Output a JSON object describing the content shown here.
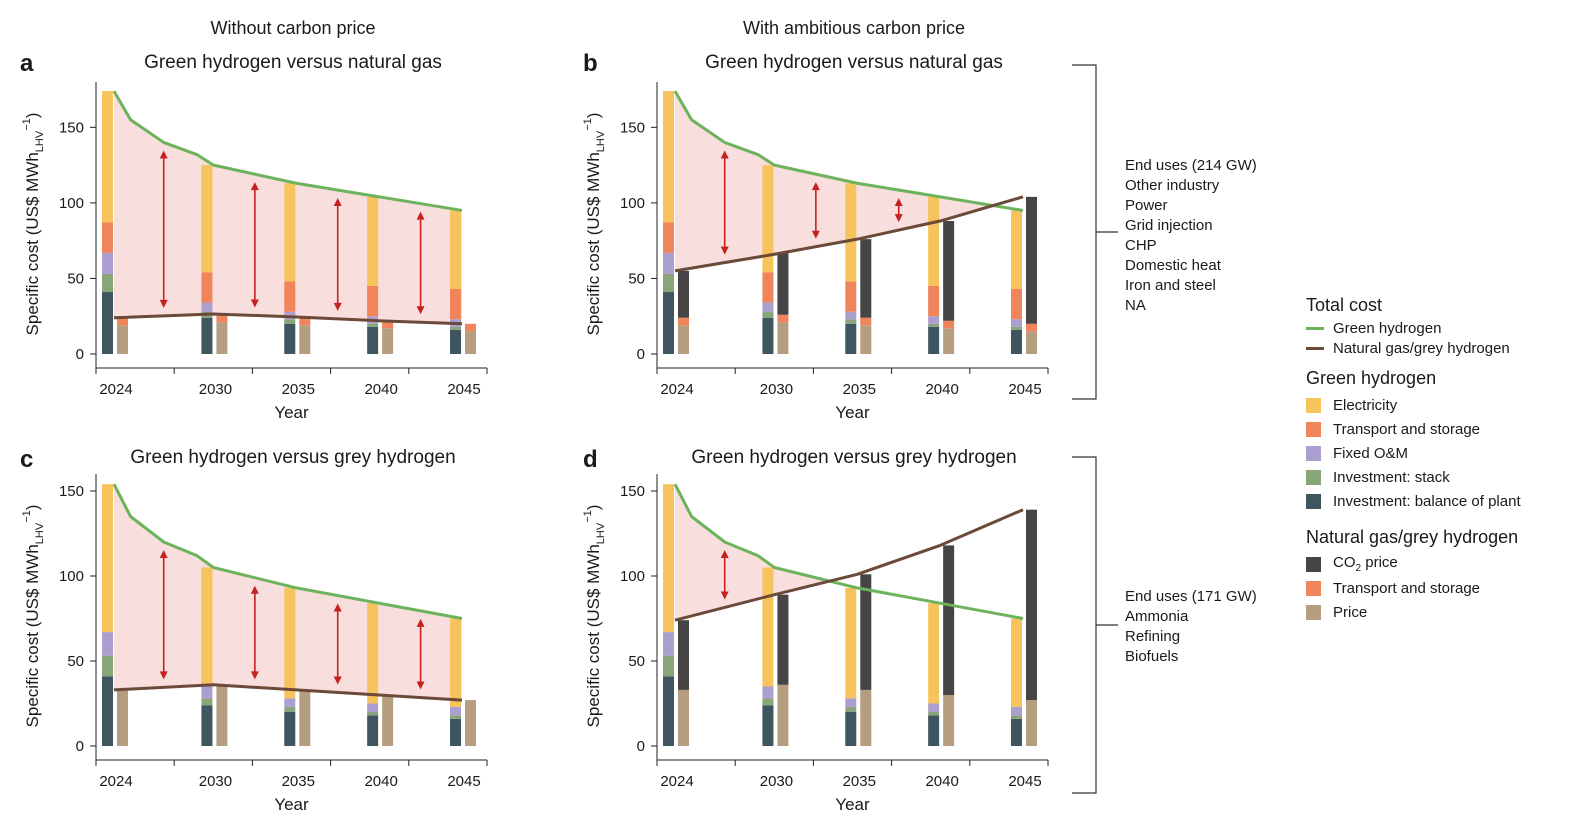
{
  "column_titles": {
    "left": "Without carbon price",
    "right": "With ambitious carbon price"
  },
  "end_use_groups": [
    {
      "items": [
        "End uses (214 GW)",
        "Other industry",
        "Power",
        "Grid injection",
        "CHP",
        "Domestic heat",
        "Iron and steel",
        "NA"
      ]
    },
    {
      "items": [
        "End uses (171 GW)",
        "Ammonia",
        "Refining",
        "Biofuels"
      ]
    }
  ],
  "legend": {
    "total_cost": {
      "title": "Total cost",
      "items": [
        {
          "label": "Green hydrogen",
          "color": "#6db35c"
        },
        {
          "label": "Natural gas/grey hydrogen",
          "color": "#6b4a39"
        }
      ]
    },
    "green": {
      "title": "Green hydrogen",
      "items": [
        {
          "label": "Electricity",
          "color": "#f6c35d"
        },
        {
          "label": "Transport and storage",
          "color": "#f0845a"
        },
        {
          "label": "Fixed O&M",
          "color": "#ab9fcf"
        },
        {
          "label": "Investment: stack",
          "color": "#8aa57a"
        },
        {
          "label": "Investment: balance of plant",
          "color": "#3f5560"
        }
      ]
    },
    "grey": {
      "title_prefix": "Natural gas/grey hydrogen",
      "items": [
        {
          "label_main": "CO",
          "label_sub": "2",
          "label_rest": " price",
          "color": "#464444"
        },
        {
          "label_main": "Transport and storage",
          "label_sub": "",
          "label_rest": "",
          "color": "#f0845a"
        },
        {
          "label_main": "Price",
          "label_sub": "",
          "label_rest": "",
          "color": "#b59e7f"
        }
      ]
    }
  },
  "chart_data": [
    {
      "panel": "a",
      "title": "Green hydrogen versus natural gas",
      "type": "bar",
      "xlabel": "Year",
      "ylabel": "Specific cost (US$ MWh",
      "ylabel_sub": "LHV",
      "ylabel_sup": "−1",
      "ylabel_end": ")",
      "ylim": [
        0,
        180
      ],
      "yticks": [
        0,
        50,
        100,
        150
      ],
      "years": [
        "2024",
        "2030",
        "2035",
        "2040",
        "2045"
      ],
      "green_stack": [
        {
          "year": "2024",
          "investment_bop": 41,
          "investment_stack": 12,
          "fixed_om": 14,
          "transport": 20,
          "electricity": 87
        },
        {
          "year": "2030",
          "investment_bop": 24,
          "investment_stack": 4,
          "fixed_om": 6,
          "transport": 20,
          "electricity": 71
        },
        {
          "year": "2035",
          "investment_bop": 20,
          "investment_stack": 3,
          "fixed_om": 5,
          "transport": 20,
          "electricity": 65
        },
        {
          "year": "2040",
          "investment_bop": 18,
          "investment_stack": 2,
          "fixed_om": 5,
          "transport": 20,
          "electricity": 59
        },
        {
          "year": "2045",
          "investment_bop": 16,
          "investment_stack": 2,
          "fixed_om": 5,
          "transport": 20,
          "electricity": 52
        }
      ],
      "grey_stack": [
        {
          "year": "2024",
          "price": 19,
          "transport": 5,
          "co2": 0
        },
        {
          "year": "2030",
          "price": 21,
          "transport": 5,
          "co2": 0
        },
        {
          "year": "2035",
          "price": 19,
          "transport": 5,
          "co2": 0
        },
        {
          "year": "2040",
          "price": 17,
          "transport": 5,
          "co2": 0
        },
        {
          "year": "2045",
          "price": 15,
          "transport": 5,
          "co2": 0
        }
      ],
      "green_total_line": {
        "x": [
          2024,
          2025,
          2027,
          2029,
          2030,
          2035,
          2040,
          2045
        ],
        "y": [
          174,
          155,
          140,
          132,
          125,
          113,
          104,
          95
        ]
      },
      "grey_total_line": {
        "x": [
          2024,
          2030,
          2035,
          2040,
          2045
        ],
        "y": [
          24,
          26.5,
          24.5,
          22,
          20
        ]
      },
      "gap_arrows": [
        2027,
        2032.5,
        2037.5,
        2042.5
      ]
    },
    {
      "panel": "b",
      "title": "Green hydrogen versus natural gas",
      "type": "bar",
      "xlabel": "Year",
      "ylabel": "Specific cost (US$ MWh",
      "ylabel_sub": "LHV",
      "ylabel_sup": "−1",
      "ylabel_end": ")",
      "ylim": [
        0,
        180
      ],
      "yticks": [
        0,
        50,
        100,
        150
      ],
      "years": [
        "2024",
        "2030",
        "2035",
        "2040",
        "2045"
      ],
      "green_stack": [
        {
          "year": "2024",
          "investment_bop": 41,
          "investment_stack": 12,
          "fixed_om": 14,
          "transport": 20,
          "electricity": 87
        },
        {
          "year": "2030",
          "investment_bop": 24,
          "investment_stack": 4,
          "fixed_om": 6,
          "transport": 20,
          "electricity": 71
        },
        {
          "year": "2035",
          "investment_bop": 20,
          "investment_stack": 3,
          "fixed_om": 5,
          "transport": 20,
          "electricity": 65
        },
        {
          "year": "2040",
          "investment_bop": 18,
          "investment_stack": 2,
          "fixed_om": 5,
          "transport": 20,
          "electricity": 59
        },
        {
          "year": "2045",
          "investment_bop": 16,
          "investment_stack": 2,
          "fixed_om": 5,
          "transport": 20,
          "electricity": 52
        }
      ],
      "grey_stack": [
        {
          "year": "2024",
          "price": 19,
          "transport": 5,
          "co2": 31
        },
        {
          "year": "2030",
          "price": 21,
          "transport": 5,
          "co2": 41
        },
        {
          "year": "2035",
          "price": 19,
          "transport": 5,
          "co2": 52
        },
        {
          "year": "2040",
          "price": 17,
          "transport": 5,
          "co2": 66
        },
        {
          "year": "2045",
          "price": 15,
          "transport": 5,
          "co2": 84
        }
      ],
      "green_total_line": {
        "x": [
          2024,
          2025,
          2027,
          2029,
          2030,
          2035,
          2040,
          2045
        ],
        "y": [
          174,
          155,
          140,
          132,
          125,
          113,
          104,
          95
        ]
      },
      "grey_total_line": {
        "x": [
          2024,
          2030,
          2035,
          2040,
          2045
        ],
        "y": [
          55,
          66,
          76,
          88,
          104
        ]
      },
      "gap_arrows": [
        2027,
        2032.5,
        2037.5
      ]
    },
    {
      "panel": "c",
      "title": "Green hydrogen versus grey hydrogen",
      "type": "bar",
      "xlabel": "Year",
      "ylabel": "Specific cost (US$ MWh",
      "ylabel_sub": "LHV",
      "ylabel_sup": "−1",
      "ylabel_end": ")",
      "ylim": [
        0,
        160
      ],
      "yticks": [
        0,
        50,
        100,
        150
      ],
      "years": [
        "2024",
        "2030",
        "2035",
        "2040",
        "2045"
      ],
      "green_stack": [
        {
          "year": "2024",
          "investment_bop": 41,
          "investment_stack": 12,
          "fixed_om": 14,
          "transport": 0,
          "electricity": 87
        },
        {
          "year": "2030",
          "investment_bop": 24,
          "investment_stack": 4,
          "fixed_om": 7,
          "transport": 0,
          "electricity": 70
        },
        {
          "year": "2035",
          "investment_bop": 20,
          "investment_stack": 3,
          "fixed_om": 5,
          "transport": 0,
          "electricity": 65
        },
        {
          "year": "2040",
          "investment_bop": 18,
          "investment_stack": 2,
          "fixed_om": 5,
          "transport": 0,
          "electricity": 59
        },
        {
          "year": "2045",
          "investment_bop": 16,
          "investment_stack": 2,
          "fixed_om": 5,
          "transport": 0,
          "electricity": 52
        }
      ],
      "grey_stack": [
        {
          "year": "2024",
          "price": 33,
          "transport": 0,
          "co2": 0
        },
        {
          "year": "2030",
          "price": 36,
          "transport": 0,
          "co2": 0
        },
        {
          "year": "2035",
          "price": 33,
          "transport": 0,
          "co2": 0
        },
        {
          "year": "2040",
          "price": 30,
          "transport": 0,
          "co2": 0
        },
        {
          "year": "2045",
          "price": 27,
          "transport": 0,
          "co2": 0
        }
      ],
      "green_total_line": {
        "x": [
          2024,
          2025,
          2027,
          2029,
          2030,
          2035,
          2040,
          2045
        ],
        "y": [
          154,
          135,
          120,
          112,
          105,
          93,
          84,
          75
        ]
      },
      "grey_total_line": {
        "x": [
          2024,
          2030,
          2035,
          2040,
          2045
        ],
        "y": [
          33,
          36,
          33,
          30,
          27
        ]
      },
      "gap_arrows": [
        2027,
        2032.5,
        2037.5,
        2042.5
      ]
    },
    {
      "panel": "d",
      "title": "Green hydrogen versus grey hydrogen",
      "type": "bar",
      "xlabel": "Year",
      "ylabel": "Specific cost (US$ MWh",
      "ylabel_sub": "LHV",
      "ylabel_sup": "−1",
      "ylabel_end": ")",
      "ylim": [
        0,
        160
      ],
      "yticks": [
        0,
        50,
        100,
        150
      ],
      "years": [
        "2024",
        "2030",
        "2035",
        "2040",
        "2045"
      ],
      "green_stack": [
        {
          "year": "2024",
          "investment_bop": 41,
          "investment_stack": 12,
          "fixed_om": 14,
          "transport": 0,
          "electricity": 87
        },
        {
          "year": "2030",
          "investment_bop": 24,
          "investment_stack": 4,
          "fixed_om": 7,
          "transport": 0,
          "electricity": 70
        },
        {
          "year": "2035",
          "investment_bop": 20,
          "investment_stack": 3,
          "fixed_om": 5,
          "transport": 0,
          "electricity": 65
        },
        {
          "year": "2040",
          "investment_bop": 18,
          "investment_stack": 2,
          "fixed_om": 5,
          "transport": 0,
          "electricity": 59
        },
        {
          "year": "2045",
          "investment_bop": 16,
          "investment_stack": 2,
          "fixed_om": 5,
          "transport": 0,
          "electricity": 52
        }
      ],
      "grey_stack": [
        {
          "year": "2024",
          "price": 33,
          "transport": 0,
          "co2": 41
        },
        {
          "year": "2030",
          "price": 36,
          "transport": 0,
          "co2": 53
        },
        {
          "year": "2035",
          "price": 33,
          "transport": 0,
          "co2": 68
        },
        {
          "year": "2040",
          "price": 30,
          "transport": 0,
          "co2": 88
        },
        {
          "year": "2045",
          "price": 27,
          "transport": 0,
          "co2": 112
        }
      ],
      "green_total_line": {
        "x": [
          2024,
          2025,
          2027,
          2029,
          2030,
          2035,
          2040,
          2045
        ],
        "y": [
          154,
          135,
          120,
          112,
          105,
          93,
          84,
          75
        ]
      },
      "grey_total_line": {
        "x": [
          2024,
          2030,
          2035,
          2040,
          2045
        ],
        "y": [
          74,
          89,
          101,
          118,
          139
        ]
      },
      "gap_arrows": [
        2027
      ]
    }
  ]
}
